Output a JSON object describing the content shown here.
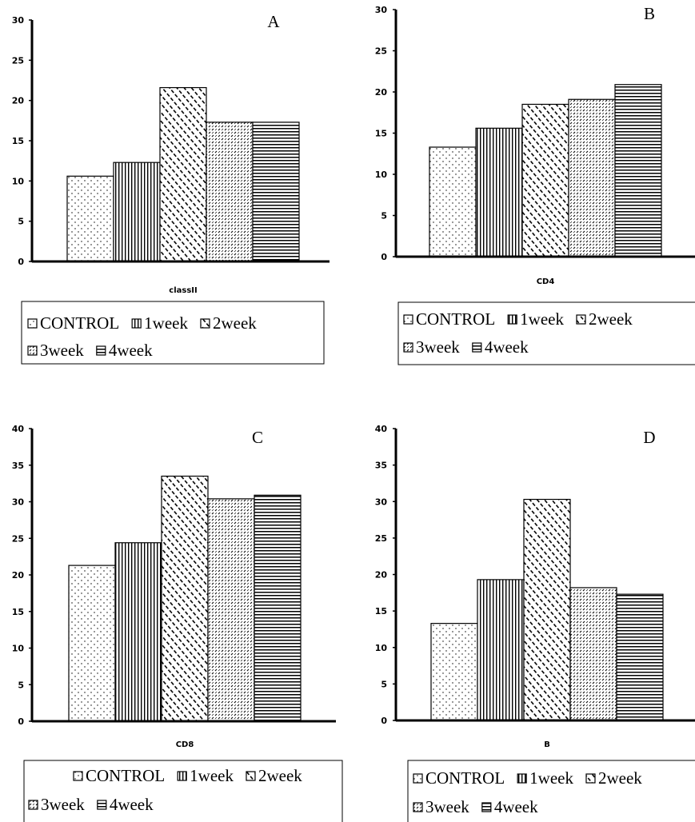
{
  "chart_data": [
    {
      "type": "bar",
      "panel_label": "A",
      "xlabel": "classII",
      "ylim": [
        0,
        30
      ],
      "yticks": [
        "0",
        "5",
        "10",
        "15",
        "20",
        "25",
        "30"
      ],
      "series": [
        {
          "name": "CONTROL",
          "values": [
            10.6
          ]
        },
        {
          "name": "1week",
          "values": [
            12.3
          ]
        },
        {
          "name": "2week",
          "values": [
            21.6
          ]
        },
        {
          "name": "3week",
          "values": [
            17.3
          ]
        },
        {
          "name": "4week",
          "values": [
            17.3
          ]
        }
      ],
      "legend": {
        "line1": [
          "CONTROL",
          "1week",
          "2week"
        ],
        "line2": [
          "3week",
          "4week"
        ]
      }
    },
    {
      "type": "bar",
      "panel_label": "B",
      "xlabel": "CD4",
      "ylim": [
        0,
        30
      ],
      "yticks": [
        "0",
        "5",
        "10",
        "15",
        "20",
        "25",
        "30"
      ],
      "series": [
        {
          "name": "CONTROL",
          "values": [
            13.3
          ]
        },
        {
          "name": "1week",
          "values": [
            15.6
          ]
        },
        {
          "name": "2week",
          "values": [
            18.5
          ]
        },
        {
          "name": "3week",
          "values": [
            19.1
          ]
        },
        {
          "name": "4week",
          "values": [
            20.9
          ]
        }
      ],
      "legend": {
        "line1": [
          "CONTROL",
          "1week",
          "2week"
        ],
        "line2": [
          "3week",
          "4week"
        ]
      }
    },
    {
      "type": "bar",
      "panel_label": "C",
      "xlabel": "CD8",
      "ylim": [
        0,
        40
      ],
      "yticks": [
        "0",
        "5",
        "10",
        "15",
        "20",
        "25",
        "30",
        "35",
        "40"
      ],
      "series": [
        {
          "name": "CONTROL",
          "values": [
            21.3
          ]
        },
        {
          "name": "1week",
          "values": [
            24.4
          ]
        },
        {
          "name": "2week",
          "values": [
            33.5
          ]
        },
        {
          "name": "3week",
          "values": [
            30.4
          ]
        },
        {
          "name": "4week",
          "values": [
            30.9
          ]
        }
      ],
      "legend": {
        "line1": [
          "CONTROL",
          "1week",
          "2week"
        ],
        "line2": [
          "3week",
          "4week"
        ]
      }
    },
    {
      "type": "bar",
      "panel_label": "D",
      "xlabel": "B",
      "ylim": [
        0,
        40
      ],
      "yticks": [
        "0",
        "5",
        "10",
        "15",
        "20",
        "25",
        "30",
        "35",
        "40"
      ],
      "series": [
        {
          "name": "CONTROL",
          "values": [
            13.3
          ]
        },
        {
          "name": "1week",
          "values": [
            19.3
          ]
        },
        {
          "name": "2week",
          "values": [
            30.3
          ]
        },
        {
          "name": "3week",
          "values": [
            18.2
          ]
        },
        {
          "name": "4week",
          "values": [
            17.3
          ]
        }
      ],
      "legend": {
        "line1": [
          "CONTROL",
          "1week",
          "2week"
        ],
        "line2": [
          "3week",
          "4week"
        ]
      }
    }
  ]
}
